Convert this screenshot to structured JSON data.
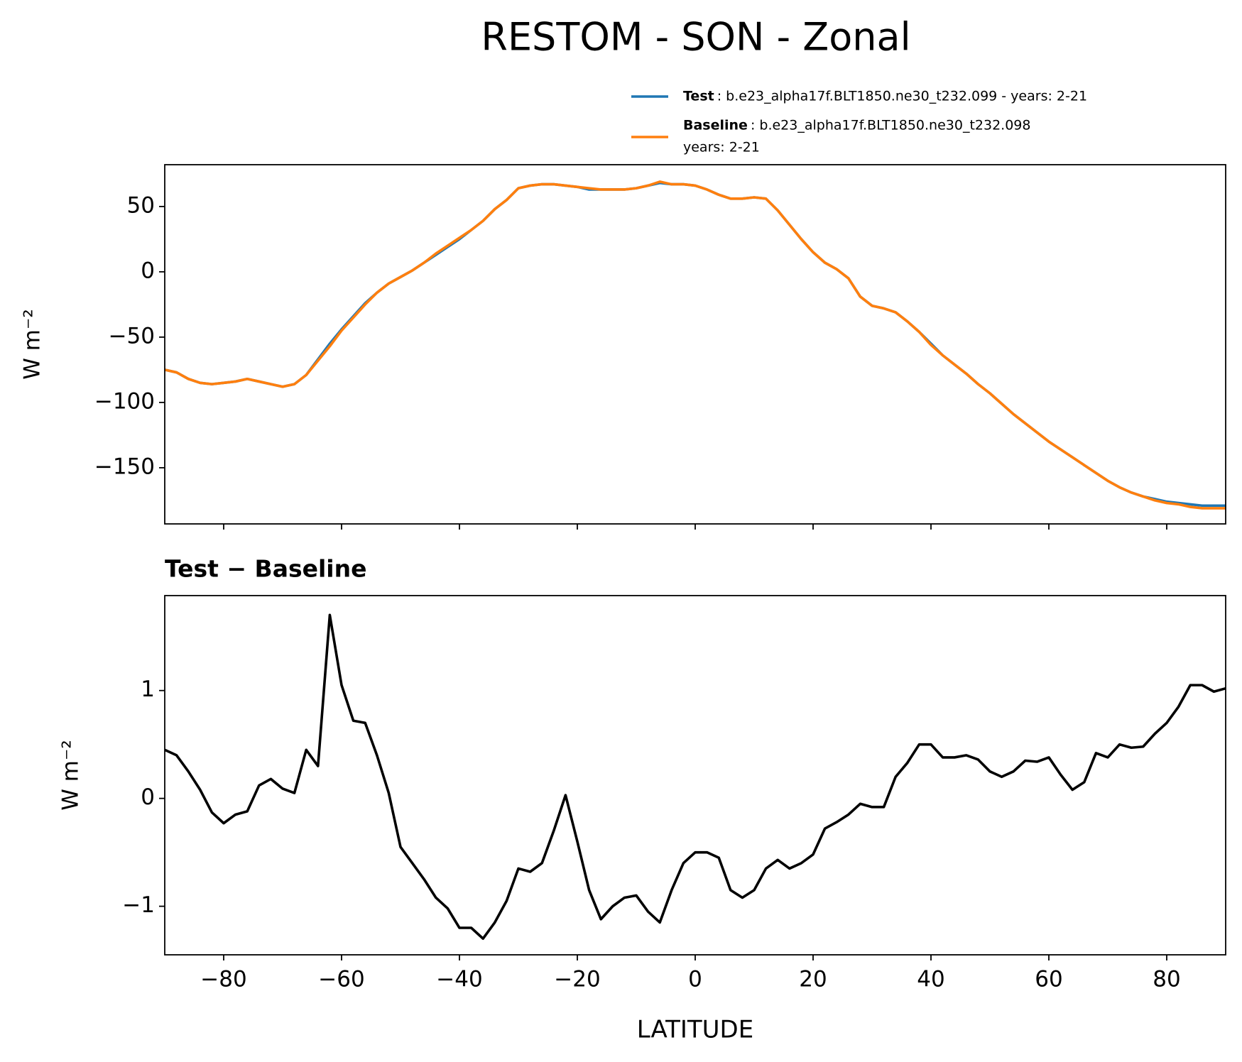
{
  "chart_data": [
    {
      "type": "line",
      "title": "RESTOM - SON - Zonal",
      "ylabel": "W m⁻²",
      "x": [
        -90,
        -88,
        -86,
        -84,
        -82,
        -80,
        -78,
        -76,
        -74,
        -72,
        -70,
        -68,
        -66,
        -64,
        -62,
        -60,
        -58,
        -56,
        -54,
        -52,
        -50,
        -48,
        -46,
        -44,
        -42,
        -40,
        -38,
        -36,
        -34,
        -32,
        -30,
        -28,
        -26,
        -24,
        -22,
        -20,
        -18,
        -16,
        -14,
        -12,
        -10,
        -8,
        -6,
        -4,
        -2,
        0,
        2,
        4,
        6,
        8,
        10,
        12,
        14,
        16,
        18,
        20,
        22,
        24,
        26,
        28,
        30,
        32,
        34,
        36,
        38,
        40,
        42,
        44,
        46,
        48,
        50,
        52,
        54,
        56,
        58,
        60,
        62,
        64,
        66,
        68,
        70,
        72,
        74,
        76,
        78,
        80,
        82,
        84,
        86,
        88,
        90
      ],
      "series": [
        {
          "name": "Test",
          "description": [
            ": b.e23_alpha17f.BLT1850.ne30_t232.099 - years: 2-21"
          ],
          "color": "#1f77b4",
          "values": [
            -75,
            -77,
            -82,
            -85,
            -86,
            -85,
            -84,
            -82,
            -84,
            -86,
            -88,
            -86,
            -79,
            -67,
            -55,
            -44,
            -34,
            -24,
            -16,
            -9,
            -4,
            1,
            7,
            13,
            19,
            25,
            32,
            39,
            48,
            55,
            64,
            66,
            67,
            67,
            66,
            65,
            63,
            63,
            63,
            63,
            64,
            66,
            68,
            67,
            67,
            66,
            63,
            59,
            56,
            56,
            57,
            56,
            47,
            36,
            25,
            15,
            7,
            2,
            -5,
            -19,
            -26,
            -28,
            -31,
            -38,
            -46,
            -55,
            -64,
            -71,
            -78,
            -86,
            -93,
            -101,
            -109,
            -116,
            -123,
            -130,
            -136,
            -142,
            -148,
            -154,
            -160,
            -165,
            -169,
            -172,
            -174,
            -176,
            -177,
            -178,
            -179,
            -179,
            -179
          ]
        },
        {
          "name": "Baseline",
          "description": [
            ": b.e23_alpha17f.BLT1850.ne30_t232.098",
            "years: 2-21"
          ],
          "color": "#ff7f0e",
          "values": [
            -75,
            -77,
            -82,
            -85,
            -86,
            -85,
            -84,
            -82,
            -84,
            -86,
            -88,
            -86,
            -79,
            -68,
            -57,
            -45,
            -35,
            -25,
            -16,
            -9,
            -4,
            1,
            7,
            14,
            20,
            26,
            32,
            39,
            48,
            55,
            64,
            66,
            67,
            67,
            66,
            65,
            64,
            63,
            63,
            63,
            64,
            66,
            69,
            67,
            67,
            66,
            63,
            59,
            56,
            56,
            57,
            56,
            47,
            36,
            25,
            15,
            7,
            2,
            -5,
            -19,
            -26,
            -28,
            -31,
            -38,
            -46,
            -56,
            -64,
            -71,
            -78,
            -86,
            -93,
            -101,
            -109,
            -116,
            -123,
            -130,
            -136,
            -142,
            -148,
            -154,
            -160,
            -165,
            -169,
            -172,
            -175,
            -177,
            -178,
            -180,
            -181,
            -181,
            -181
          ]
        }
      ],
      "xlim": [
        -90,
        90
      ],
      "xticks": [
        -80,
        -60,
        -40,
        -20,
        0,
        20,
        40,
        60,
        80
      ],
      "ylim": [
        -193,
        82
      ],
      "yticks": [
        {
          "value": -150,
          "label": "−150"
        },
        {
          "value": -100,
          "label": "−100"
        },
        {
          "value": -50,
          "label": "−50"
        },
        0,
        50
      ]
    },
    {
      "type": "line",
      "title": "Test − Baseline",
      "ylabel": "W m⁻²",
      "xlabel": "LATITUDE",
      "color": "#000000",
      "x": [
        -90,
        -88,
        -86,
        -84,
        -82,
        -80,
        -78,
        -76,
        -74,
        -72,
        -70,
        -68,
        -66,
        -64,
        -62,
        -60,
        -58,
        -56,
        -54,
        -52,
        -50,
        -48,
        -46,
        -44,
        -42,
        -40,
        -38,
        -36,
        -34,
        -32,
        -30,
        -28,
        -26,
        -24,
        -22,
        -20,
        -18,
        -16,
        -14,
        -12,
        -10,
        -8,
        -6,
        -4,
        -2,
        0,
        2,
        4,
        6,
        8,
        10,
        12,
        14,
        16,
        18,
        20,
        22,
        24,
        26,
        28,
        30,
        32,
        34,
        36,
        38,
        40,
        42,
        44,
        46,
        48,
        50,
        52,
        54,
        56,
        58,
        60,
        62,
        64,
        66,
        68,
        70,
        72,
        74,
        76,
        78,
        80,
        82,
        84,
        86,
        88,
        90
      ],
      "values": [
        0.45,
        0.4,
        0.25,
        0.08,
        -0.13,
        -0.23,
        -0.15,
        -0.12,
        0.12,
        0.18,
        0.09,
        0.05,
        0.45,
        0.3,
        1.7,
        1.05,
        0.72,
        0.7,
        0.4,
        0.05,
        -0.45,
        -0.6,
        -0.75,
        -0.92,
        -1.02,
        -1.2,
        -1.2,
        -1.3,
        -1.15,
        -0.95,
        -0.65,
        -0.68,
        -0.6,
        -0.3,
        0.03,
        -0.4,
        -0.85,
        -1.12,
        -1.0,
        -0.92,
        -0.9,
        -1.05,
        -1.15,
        -0.85,
        -0.6,
        -0.5,
        -0.5,
        -0.55,
        -0.85,
        -0.92,
        -0.85,
        -0.65,
        -0.57,
        -0.65,
        -0.6,
        -0.52,
        -0.28,
        -0.22,
        -0.15,
        -0.05,
        -0.08,
        -0.08,
        0.2,
        0.33,
        0.5,
        0.5,
        0.38,
        0.38,
        0.4,
        0.36,
        0.25,
        0.2,
        0.25,
        0.35,
        0.34,
        0.38,
        0.22,
        0.08,
        0.15,
        0.42,
        0.38,
        0.5,
        0.47,
        0.48,
        0.6,
        0.7,
        0.85,
        1.05,
        1.05,
        0.99,
        1.02
      ],
      "xlim": [
        -90,
        90
      ],
      "xticks": [
        {
          "value": -80,
          "label": "−80"
        },
        {
          "value": -60,
          "label": "−60"
        },
        {
          "value": -40,
          "label": "−40"
        },
        {
          "value": -20,
          "label": "−20"
        },
        0,
        20,
        40,
        60,
        80
      ],
      "ylim": [
        -1.45,
        1.88
      ],
      "yticks": [
        {
          "value": -1,
          "label": "−1"
        },
        0,
        1
      ]
    }
  ]
}
